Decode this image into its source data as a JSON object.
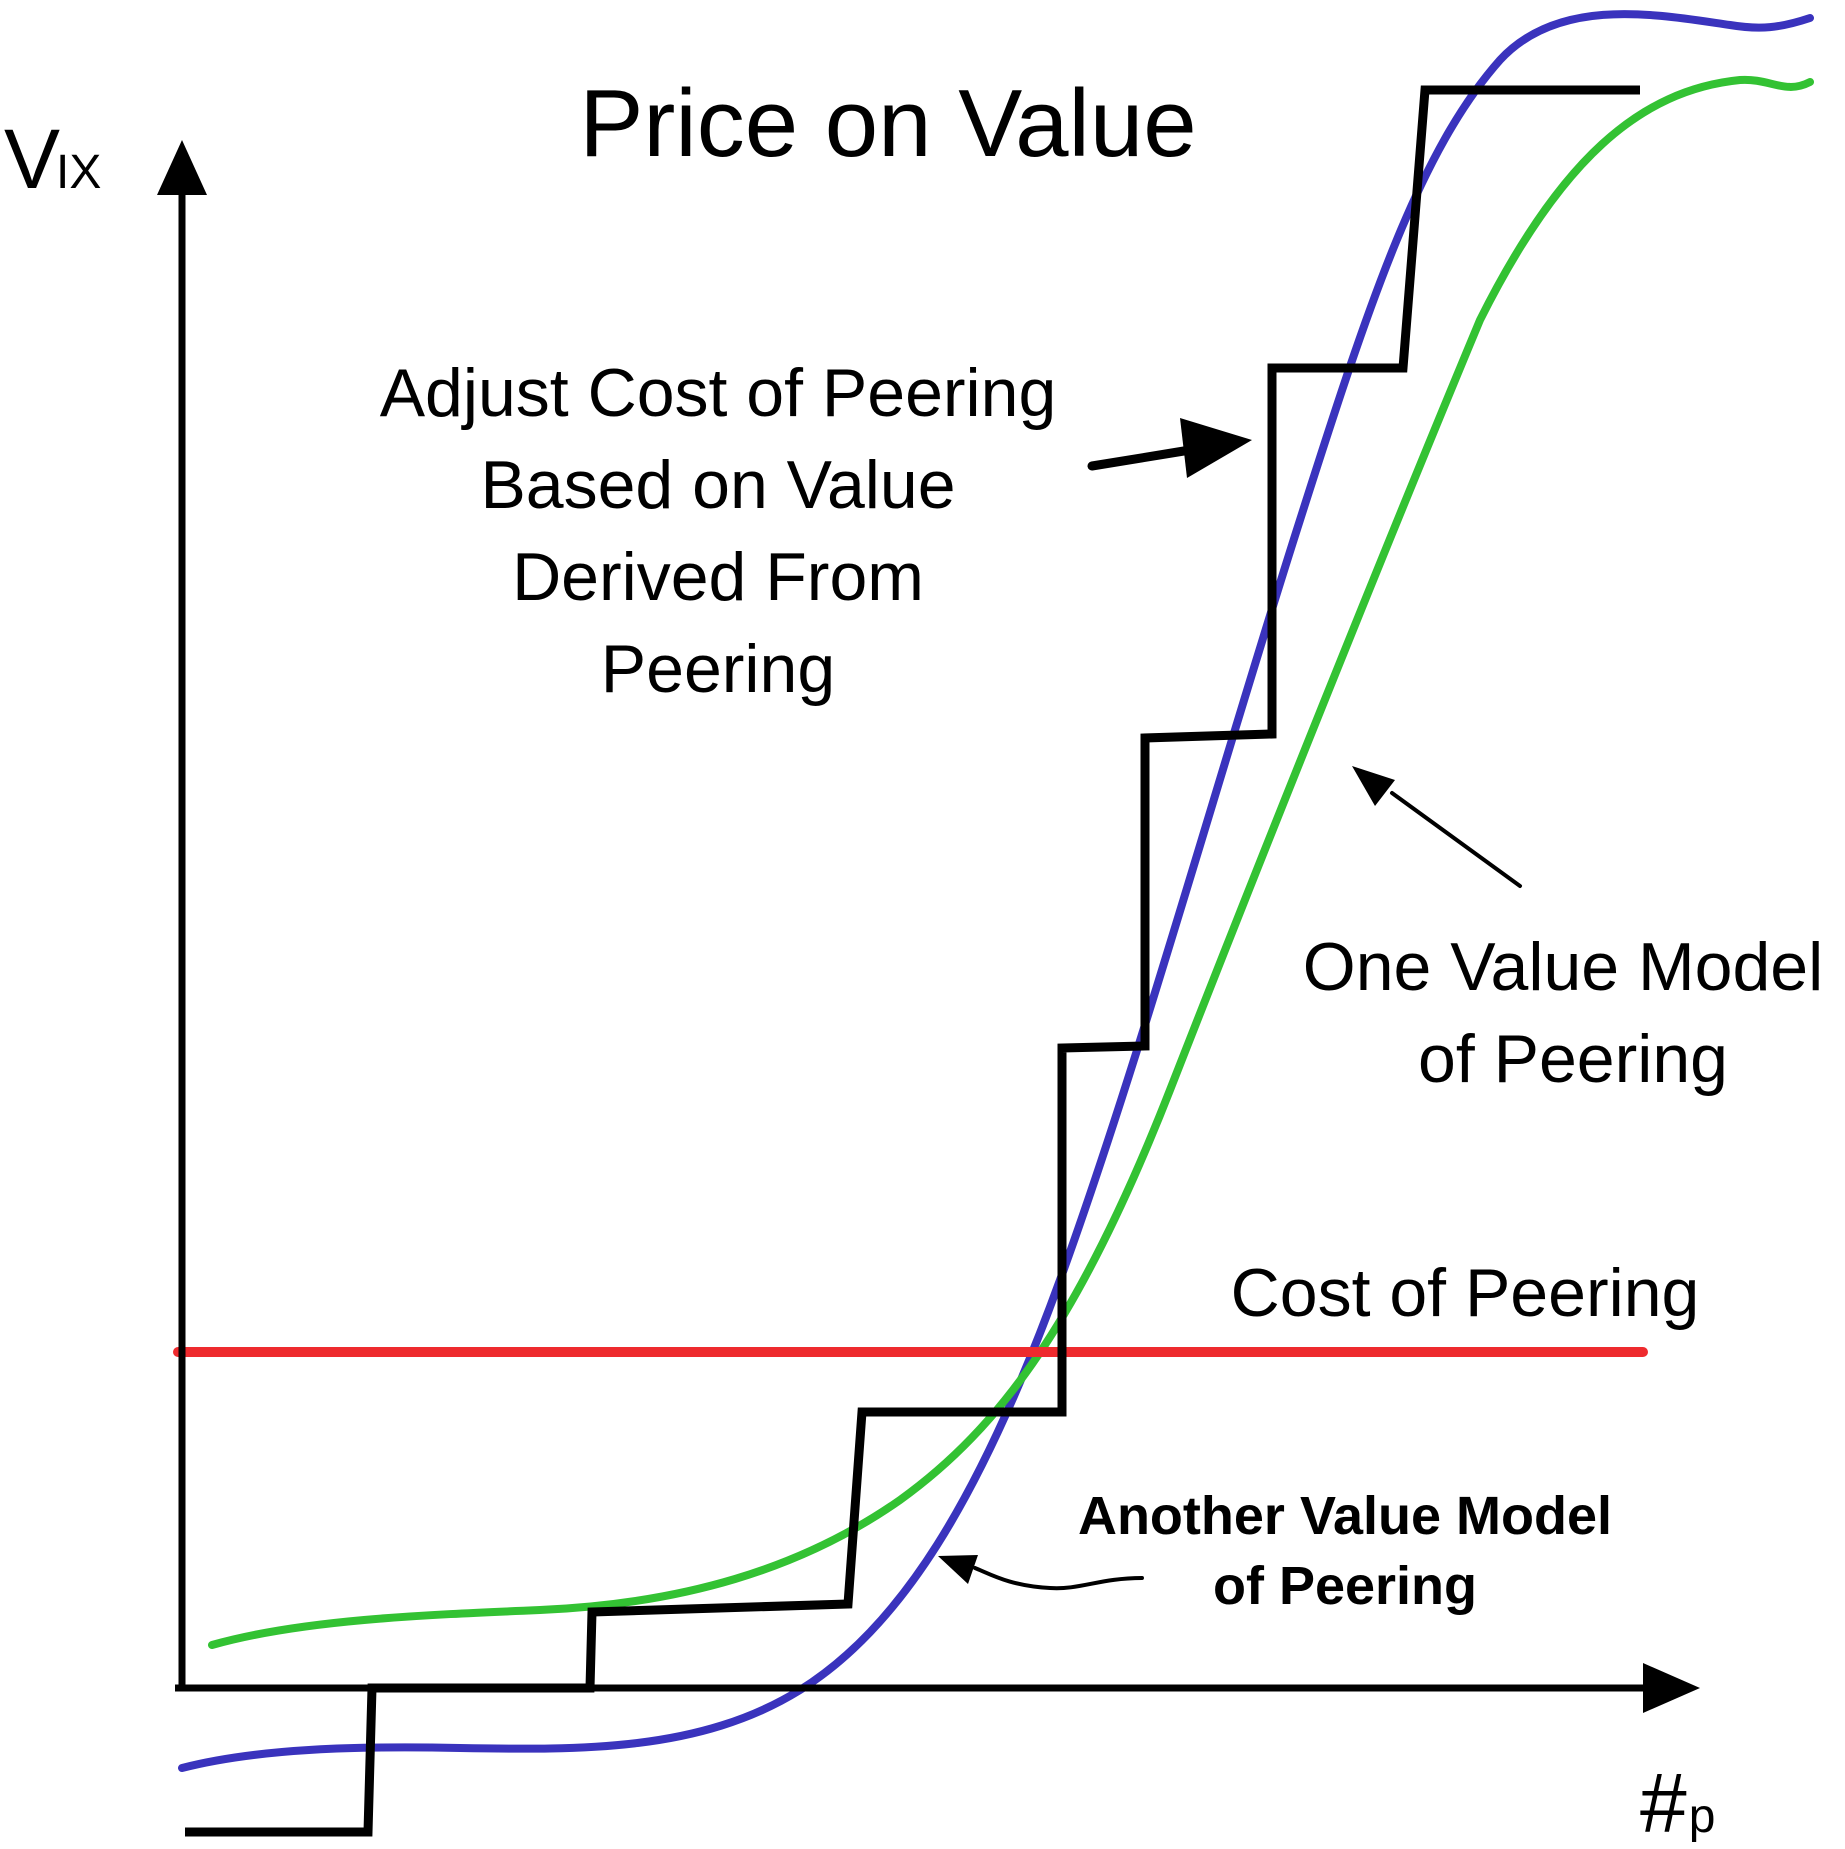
{
  "figure": {
    "title": "Price on Value",
    "y_axis": {
      "symbol": "V",
      "subscript": "IX"
    },
    "x_axis": {
      "symbol": "#",
      "subscript": "p"
    },
    "annotations": {
      "adjust_cost": [
        "Adjust Cost of Peering",
        "Based on Value",
        "Derived From",
        "Peering"
      ],
      "one_value_model": [
        "One Value Model",
        "of Peering"
      ],
      "cost_of_peering": "Cost of Peering",
      "another_value_model": [
        "Another Value Model",
        "of Peering"
      ]
    },
    "colors": {
      "axes": "#000000",
      "step_curve": "#000000",
      "cost_line": "#ee2a2e",
      "green_curve": "#33c233",
      "blue_curve": "#3a33bd"
    }
  }
}
